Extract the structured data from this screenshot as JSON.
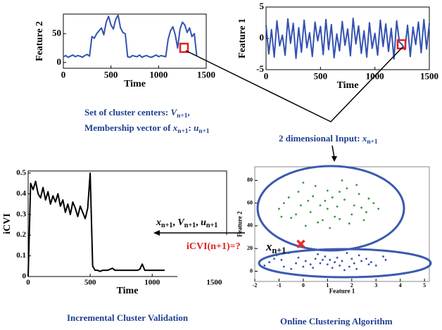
{
  "chart_data": [
    {
      "type": "line",
      "xlabel": "Time",
      "ylabel": "Feature 2",
      "xlim": [
        0,
        1500
      ],
      "ylim": [
        -10,
        84
      ],
      "xticks": [
        0,
        500,
        1000,
        1500
      ],
      "yticks": [
        0,
        50
      ],
      "x": [
        0,
        25,
        50,
        75,
        100,
        125,
        150,
        175,
        200,
        225,
        250,
        275,
        300,
        325,
        350,
        375,
        400,
        425,
        450,
        475,
        500,
        525,
        550,
        575,
        600,
        625,
        650,
        675,
        700,
        725,
        750,
        775,
        800,
        825,
        850,
        875,
        900,
        925,
        950,
        975,
        1000,
        1025,
        1050,
        1075,
        1100,
        1125,
        1150,
        1175,
        1200,
        1225,
        1250,
        1275,
        1300,
        1325,
        1350,
        1375,
        1400
      ],
      "series": [
        {
          "color": "#3352b0",
          "values": [
            10,
            12,
            9,
            11,
            13,
            10,
            12,
            11,
            9,
            12,
            14,
            11,
            45,
            42,
            50,
            55,
            60,
            48,
            70,
            80,
            65,
            58,
            75,
            82,
            60,
            52,
            50,
            10,
            9,
            12,
            11,
            10,
            13,
            9,
            11,
            12,
            10,
            9,
            11,
            13,
            10,
            12,
            11,
            10,
            40,
            55,
            62,
            48,
            25,
            58,
            70,
            65,
            52,
            60,
            45,
            50,
            12
          ]
        }
      ]
    },
    {
      "type": "line",
      "xlabel": "Time",
      "ylabel": "Feature 1",
      "xlim": [
        0,
        1500
      ],
      "ylim": [
        -5,
        5
      ],
      "xticks": [
        0,
        500,
        1000,
        1500
      ],
      "yticks": [
        -5,
        0,
        5
      ],
      "x": [
        0,
        25,
        50,
        75,
        100,
        125,
        150,
        175,
        200,
        225,
        250,
        275,
        300,
        325,
        350,
        375,
        400,
        425,
        450,
        475,
        500,
        525,
        550,
        575,
        600,
        625,
        650,
        675,
        700,
        725,
        750,
        775,
        800,
        825,
        850,
        875,
        900,
        925,
        950,
        975,
        1000,
        1025,
        1050,
        1075,
        1100,
        1125,
        1150,
        1175,
        1200,
        1225,
        1250,
        1275,
        1300,
        1325,
        1350,
        1375,
        1400,
        1425,
        1450,
        1475,
        1500
      ],
      "series": [
        {
          "color": "#3352b0",
          "values": [
            2.1,
            -2.5,
            1.4,
            -3.0,
            2.8,
            -1.2,
            0.5,
            -2.7,
            3.1,
            -0.8,
            2.4,
            -3.2,
            1.7,
            -2.2,
            2.9,
            -1.5,
            0.9,
            -2.9,
            2.6,
            -0.4,
            1.9,
            -2.6,
            3.0,
            -1.8,
            2.2,
            -3.1,
            0.7,
            -2.0,
            2.7,
            -1.1,
            1.5,
            -2.8,
            3.2,
            -0.9,
            2.0,
            -2.4,
            1.2,
            -3.0,
            2.5,
            -1.6,
            0.8,
            -2.7,
            2.9,
            -1.3,
            2.3,
            -2.1,
            1.6,
            -3.3,
            2.8,
            -0.6,
            -1.0,
            -1.8,
            2.1,
            -2.9,
            1.8,
            -1.0,
            2.6,
            -2.3,
            3.0,
            -1.7,
            2.4
          ]
        }
      ]
    },
    {
      "type": "line",
      "xlabel": "Time",
      "ylabel": "iCVI",
      "xlim": [
        0,
        1600
      ],
      "ylim": [
        0,
        0.51
      ],
      "xticks": [
        0,
        500,
        1000,
        1500
      ],
      "yticks": [
        0,
        0.1,
        0.2,
        0.3,
        0.4,
        0.5
      ],
      "x": [
        0,
        20,
        40,
        60,
        80,
        100,
        120,
        140,
        160,
        180,
        200,
        220,
        240,
        260,
        280,
        300,
        320,
        340,
        360,
        380,
        400,
        420,
        440,
        460,
        480,
        500,
        520,
        540,
        560,
        580,
        600,
        620,
        640,
        660,
        680,
        700,
        720,
        740,
        760,
        780,
        800,
        820,
        840,
        860,
        880,
        900,
        920,
        940,
        960,
        980,
        1000,
        1020,
        1040,
        1060,
        1080,
        1100
      ],
      "series": [
        {
          "color": "#000000",
          "values": [
            0,
            0.45,
            0.42,
            0.46,
            0.4,
            0.38,
            0.43,
            0.37,
            0.41,
            0.35,
            0.39,
            0.36,
            0.4,
            0.34,
            0.37,
            0.31,
            0.35,
            0.3,
            0.36,
            0.33,
            0.29,
            0.34,
            0.31,
            0.28,
            0.33,
            0.5,
            0.05,
            0.03,
            0.03,
            0.025,
            0.03,
            0.03,
            0.03,
            0.035,
            0.04,
            0.03,
            0.03,
            0.03,
            0.03,
            0.03,
            0.03,
            0.03,
            0.03,
            0.03,
            0.03,
            0.035,
            0.06,
            0.03,
            0.03,
            0.03,
            0.03,
            0.03,
            0.03,
            0.03,
            0.03,
            0.03
          ]
        }
      ]
    },
    {
      "type": "scatter",
      "xlabel": "Feature 1",
      "ylabel": "Feature 2",
      "xlim": [
        -2,
        5.2
      ],
      "ylim": [
        -9,
        92
      ],
      "xticks": [
        -2,
        -1,
        0,
        1,
        2,
        3,
        4,
        5
      ],
      "yticks": [
        0,
        20,
        40,
        60,
        80
      ],
      "series": [
        {
          "color": "#2f9a3a",
          "x": [
            0.2,
            1.5,
            -0.3,
            2.1,
            0.8,
            1.2,
            2.6,
            -0.8,
            0.5,
            1.9,
            1.0,
            0.1,
            2.3,
            -0.5,
            1.6,
            0.7,
            2.9,
            -1.0,
            1.3,
            0.4,
            1.8,
            2.5,
            -0.2,
            1.1,
            0.9,
            2.0,
            -0.6,
            1.4,
            3.1,
            0.3,
            1.7,
            -0.1,
            2.2,
            0.6,
            1.0,
            2.7,
            -0.9,
            1.5,
            0.0,
            2.4
          ],
          "values": [
            62,
            70,
            50,
            58,
            45,
            65,
            52,
            60,
            75,
            42,
            55,
            40,
            68,
            47,
            80,
            58,
            60,
            55,
            48,
            66,
            73,
            45,
            70,
            38,
            62,
            50,
            65,
            57,
            55,
            52,
            63,
            58,
            76,
            43,
            71,
            64,
            48,
            46,
            78,
            56
          ]
        },
        {
          "color": "#3352b0",
          "x": [
            -1.4,
            -0.8,
            -0.2,
            0.3,
            0.8,
            1.2,
            1.6,
            2.1,
            2.6,
            3.0,
            -1.1,
            -0.5,
            0.1,
            0.6,
            1.0,
            1.4,
            1.9,
            2.3,
            2.8,
            3.4,
            -1.6,
            -0.9,
            -0.3,
            0.4,
            0.9,
            1.3,
            1.8,
            2.2,
            2.7,
            3.3,
            -0.6,
            0.0,
            0.5,
            1.1,
            1.5,
            2.0,
            2.4,
            -1.2,
            0.7,
            1.7
          ],
          "values": [
            8,
            4,
            12,
            6,
            10,
            3,
            9,
            7,
            11,
            5,
            14,
            2,
            9,
            15,
            6,
            12,
            4,
            14,
            8,
            10,
            5,
            10,
            7,
            3,
            13,
            8,
            16,
            2,
            6,
            13,
            16,
            4,
            11,
            10,
            5,
            11,
            9,
            11,
            7,
            1
          ]
        }
      ],
      "highlight": {
        "x": -0.1,
        "y": 24,
        "color": "#e03030"
      }
    }
  ],
  "annotations": [
    {
      "color": "#1f3f8f",
      "segments": [
        {
          "t": "Set of cluster centers: "
        },
        {
          "v": "V",
          "s": "n+1"
        },
        {
          "t": ","
        }
      ]
    },
    {
      "color": "#1f3f8f",
      "segments": [
        {
          "t": "Membership vector of "
        },
        {
          "v": "x",
          "s": "n+1"
        },
        {
          "t": ": "
        },
        {
          "v": "u",
          "s": "n+1"
        }
      ]
    },
    {
      "color": "#1f3f8f",
      "segments": [
        {
          "t": "2 dimensional Input: "
        },
        {
          "v": "x",
          "s": "n+1"
        }
      ]
    },
    {
      "color": "#000000",
      "segments": [
        {
          "v": "x",
          "s": "n+1"
        },
        {
          "t": ", "
        },
        {
          "v": "V",
          "s": "n+1"
        },
        {
          "t": ", "
        },
        {
          "v": "u",
          "s": "n+1"
        }
      ]
    },
    {
      "color": "#e02020",
      "segments": [
        {
          "t": "iCVI(n+1)=?"
        }
      ]
    },
    {
      "color": "#000000",
      "segments": [
        {
          "v": "x",
          "s": "n+1"
        }
      ]
    },
    {
      "color": "#1f3f8f",
      "segments": [
        {
          "t": "Incremental Cluster Validation"
        }
      ]
    },
    {
      "color": "#1f3f8f",
      "segments": [
        {
          "t": "Online Clustering Algorithm"
        }
      ]
    }
  ]
}
